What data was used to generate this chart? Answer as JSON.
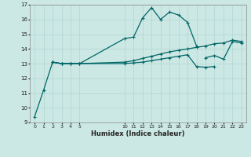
{
  "bg_color": "#cce8e4",
  "line_color": "#006666",
  "grid_color": "#b0d4d0",
  "xlabel": "Humidex (Indice chaleur)",
  "ylim": [
    9,
    17
  ],
  "xlim": [
    -0.5,
    23.5
  ],
  "yticks": [
    9,
    10,
    11,
    12,
    13,
    14,
    15,
    16,
    17
  ],
  "xticks": [
    0,
    1,
    2,
    3,
    4,
    5,
    10,
    11,
    12,
    13,
    14,
    15,
    16,
    17,
    18,
    19,
    20,
    21,
    22,
    23
  ],
  "xtick_labels": [
    "0",
    "1",
    "2",
    "3",
    "4",
    "5",
    "10",
    "11",
    "12",
    "13",
    "14",
    "15",
    "16",
    "17",
    "18",
    "19",
    "20",
    "21",
    "22",
    "23"
  ],
  "line1_pts": [
    [
      0,
      9.4
    ],
    [
      1,
      11.2
    ],
    [
      2,
      13.1
    ],
    [
      3,
      13.0
    ],
    [
      4,
      13.0
    ],
    [
      5,
      13.0
    ],
    [
      10,
      14.7
    ],
    [
      11,
      14.8
    ],
    [
      12,
      16.1
    ],
    [
      13,
      16.8
    ],
    [
      14,
      16.0
    ],
    [
      15,
      16.5
    ],
    [
      16,
      16.3
    ],
    [
      17,
      15.8
    ],
    [
      18,
      14.2
    ]
  ],
  "line2_pts": [
    [
      2,
      13.1
    ],
    [
      3,
      13.0
    ],
    [
      4,
      13.0
    ],
    [
      5,
      13.0
    ],
    [
      10,
      13.1
    ],
    [
      11,
      13.2
    ],
    [
      12,
      13.35
    ],
    [
      13,
      13.5
    ],
    [
      14,
      13.65
    ],
    [
      15,
      13.8
    ],
    [
      16,
      13.9
    ],
    [
      17,
      14.0
    ],
    [
      18,
      14.1
    ],
    [
      19,
      14.2
    ],
    [
      20,
      14.35
    ],
    [
      21,
      14.4
    ],
    [
      22,
      14.6
    ],
    [
      23,
      14.5
    ]
  ],
  "line3_pts": [
    [
      2,
      13.1
    ],
    [
      3,
      13.0
    ],
    [
      4,
      13.0
    ],
    [
      5,
      13.0
    ],
    [
      10,
      13.0
    ],
    [
      11,
      13.05
    ],
    [
      12,
      13.1
    ],
    [
      13,
      13.2
    ],
    [
      14,
      13.3
    ],
    [
      15,
      13.4
    ],
    [
      16,
      13.5
    ],
    [
      17,
      13.6
    ],
    [
      18,
      12.8
    ],
    [
      19,
      12.75
    ],
    [
      20,
      12.8
    ]
  ],
  "line4_pts": [
    [
      19,
      13.4
    ],
    [
      20,
      13.55
    ],
    [
      21,
      13.3
    ],
    [
      22,
      14.5
    ],
    [
      23,
      14.4
    ]
  ]
}
